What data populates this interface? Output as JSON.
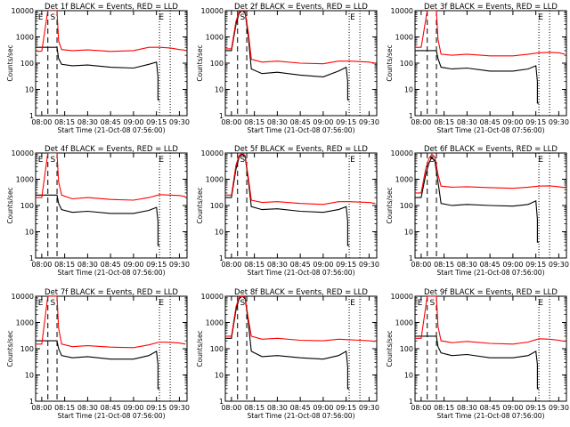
{
  "colors": {
    "events": "#000000",
    "lld": "#ff0000",
    "background": "#ffffff",
    "axes": "#000000"
  },
  "shared": {
    "xlabel": "Start Time (21-Oct-08 07:56:00)",
    "ylabel": "Counts/sec",
    "x_tick_labels": [
      "08:00",
      "08:15",
      "08:30",
      "08:45",
      "09:00",
      "09:15",
      "09:30"
    ],
    "y_tick_labels": [
      "1",
      "10",
      "100",
      "1000",
      "10000"
    ]
  },
  "chart_data": [
    {
      "type": "line",
      "title": "Det 1f BLACK = Events, RED = LLD",
      "xlabel": "Start Time (21-Oct-08 07:56:00)",
      "ylabel": "Counts/sec",
      "yscale": "log",
      "ylim": [
        1,
        10000
      ],
      "xlim": [
        "07:56",
        "09:35"
      ],
      "markers": [
        {
          "label": "E",
          "x": "07:57"
        },
        {
          "label": "S",
          "x": "08:05"
        },
        {
          "label": "E",
          "x": "09:16"
        }
      ],
      "dashed_lines": [
        "08:04",
        "08:10"
      ],
      "dotted_lines": [
        "09:17",
        "09:24"
      ],
      "series": [
        {
          "name": "Events",
          "x": [
            "07:56",
            "07:58",
            "08:00",
            "08:04",
            "08:05",
            "08:10",
            "08:11",
            "08:13",
            "08:20",
            "08:30",
            "08:45",
            "09:00",
            "09:10",
            "09:15",
            "09:16",
            "09:16",
            "09:17"
          ],
          "values": [
            400,
            400,
            400,
            400,
            400,
            400,
            150,
            90,
            80,
            85,
            70,
            65,
            90,
            110,
            30,
            4,
            4
          ]
        },
        {
          "name": "LLD",
          "x": [
            "07:56",
            "07:58",
            "08:00",
            "08:04",
            "08:05",
            "08:10",
            "08:11",
            "08:13",
            "08:20",
            "08:30",
            "08:45",
            "09:00",
            "09:10",
            "09:17",
            "09:24",
            "09:30",
            "09:34"
          ],
          "values": [
            300,
            280,
            290,
            10000,
            10000,
            10000,
            700,
            330,
            300,
            320,
            280,
            300,
            400,
            400,
            380,
            330,
            310
          ]
        }
      ]
    },
    {
      "type": "line",
      "title": "Det 2f BLACK = Events, RED = LLD",
      "xlabel": "Start Time (21-Oct-08 07:56:00)",
      "ylabel": "Counts/sec",
      "yscale": "log",
      "ylim": [
        1,
        10000
      ],
      "xlim": [
        "07:56",
        "09:35"
      ],
      "markers": [
        {
          "label": "S",
          "x": "08:05"
        },
        {
          "label": "E",
          "x": "09:17"
        }
      ],
      "dashed_lines": [
        "08:04",
        "08:10"
      ],
      "dotted_lines": [
        "09:17",
        "09:24"
      ],
      "series": [
        {
          "name": "Events",
          "x": [
            "07:56",
            "08:00",
            "08:03",
            "08:05",
            "08:07",
            "08:09",
            "08:11",
            "08:13",
            "08:20",
            "08:30",
            "08:45",
            "09:00",
            "09:10",
            "09:15",
            "09:16",
            "09:16",
            "09:17"
          ],
          "values": [
            300,
            300,
            3000,
            8000,
            10000,
            8000,
            1000,
            60,
            40,
            45,
            35,
            30,
            50,
            70,
            20,
            4,
            4
          ]
        },
        {
          "name": "LLD",
          "x": [
            "07:56",
            "08:00",
            "08:03",
            "08:05",
            "08:07",
            "08:09",
            "08:11",
            "08:13",
            "08:20",
            "08:30",
            "08:45",
            "09:00",
            "09:10",
            "09:17",
            "09:24",
            "09:30",
            "09:34"
          ],
          "values": [
            350,
            350,
            4000,
            9000,
            10000,
            9000,
            1500,
            140,
            110,
            120,
            100,
            95,
            120,
            120,
            115,
            110,
            100
          ]
        }
      ]
    },
    {
      "type": "line",
      "title": "Det 3f BLACK = Events, RED = LLD",
      "xlabel": "Start Time (21-Oct-08 07:56:00)",
      "ylabel": "Counts/sec",
      "yscale": "log",
      "ylim": [
        1,
        10000
      ],
      "xlim": [
        "07:56",
        "09:35"
      ],
      "markers": [
        {
          "label": "E",
          "x": "09:16"
        }
      ],
      "dashed_lines": [
        "08:04",
        "08:10"
      ],
      "dotted_lines": [
        "09:17",
        "09:24"
      ],
      "series": [
        {
          "name": "Events",
          "x": [
            "07:56",
            "08:00",
            "08:04",
            "08:05",
            "08:10",
            "08:11",
            "08:13",
            "08:20",
            "08:30",
            "08:45",
            "09:00",
            "09:10",
            "09:15",
            "09:16",
            "09:16",
            "09:17"
          ],
          "values": [
            300,
            300,
            300,
            300,
            300,
            150,
            70,
            60,
            65,
            50,
            50,
            60,
            80,
            20,
            3,
            3
          ]
        },
        {
          "name": "LLD",
          "x": [
            "07:56",
            "08:00",
            "08:04",
            "08:05",
            "08:10",
            "08:11",
            "08:13",
            "08:20",
            "08:30",
            "08:45",
            "09:00",
            "09:10",
            "09:17",
            "09:24",
            "09:30",
            "09:34"
          ],
          "values": [
            400,
            400,
            10000,
            10000,
            10000,
            800,
            220,
            200,
            220,
            190,
            190,
            220,
            250,
            260,
            250,
            220
          ]
        }
      ]
    },
    {
      "type": "line",
      "title": "Det 4f BLACK = Events, RED = LLD",
      "xlabel": "Start Time (21-Oct-08 07:56:00)",
      "ylabel": "Counts/sec",
      "yscale": "log",
      "ylim": [
        1,
        10000
      ],
      "xlim": [
        "07:56",
        "09:35"
      ],
      "markers": [
        {
          "label": "E",
          "x": "07:57"
        },
        {
          "label": "S",
          "x": "08:05"
        },
        {
          "label": "E",
          "x": "09:16"
        }
      ],
      "dashed_lines": [
        "08:04",
        "08:10"
      ],
      "dotted_lines": [
        "09:17",
        "09:24"
      ],
      "series": [
        {
          "name": "Events",
          "x": [
            "07:56",
            "08:00",
            "08:04",
            "08:05",
            "08:10",
            "08:11",
            "08:13",
            "08:20",
            "08:30",
            "08:45",
            "09:00",
            "09:10",
            "09:15",
            "09:16",
            "09:16",
            "09:17"
          ],
          "values": [
            250,
            250,
            250,
            250,
            250,
            120,
            70,
            55,
            60,
            50,
            50,
            65,
            85,
            25,
            3,
            3
          ]
        },
        {
          "name": "LLD",
          "x": [
            "07:56",
            "08:00",
            "08:04",
            "08:05",
            "08:10",
            "08:11",
            "08:13",
            "08:20",
            "08:30",
            "08:45",
            "09:00",
            "09:10",
            "09:17",
            "09:24",
            "09:30",
            "09:34"
          ],
          "values": [
            200,
            200,
            10000,
            10000,
            10000,
            800,
            250,
            180,
            200,
            170,
            160,
            200,
            260,
            250,
            240,
            220
          ]
        }
      ]
    },
    {
      "type": "line",
      "title": "Det 5f BLACK = Events, RED = LLD",
      "xlabel": "Start Time (21-Oct-08 07:56:00)",
      "ylabel": "Counts/sec",
      "yscale": "log",
      "ylim": [
        1,
        10000
      ],
      "xlim": [
        "07:56",
        "09:35"
      ],
      "markers": [
        {
          "label": "S",
          "x": "08:05"
        },
        {
          "label": "E",
          "x": "09:17"
        }
      ],
      "dashed_lines": [
        "08:04",
        "08:10"
      ],
      "dotted_lines": [
        "09:17",
        "09:24"
      ],
      "series": [
        {
          "name": "Events",
          "x": [
            "07:56",
            "08:00",
            "08:03",
            "08:05",
            "08:07",
            "08:09",
            "08:11",
            "08:13",
            "08:20",
            "08:30",
            "08:45",
            "09:00",
            "09:10",
            "09:15",
            "09:16",
            "09:16",
            "09:17"
          ],
          "values": [
            200,
            200,
            2500,
            7000,
            9000,
            7000,
            900,
            90,
            70,
            75,
            60,
            55,
            70,
            90,
            25,
            3,
            3
          ]
        },
        {
          "name": "LLD",
          "x": [
            "07:56",
            "08:00",
            "08:03",
            "08:05",
            "08:07",
            "08:09",
            "08:11",
            "08:13",
            "08:20",
            "08:30",
            "08:45",
            "09:00",
            "09:10",
            "09:17",
            "09:24",
            "09:30",
            "09:34"
          ],
          "values": [
            250,
            250,
            3500,
            8000,
            10000,
            8000,
            1200,
            160,
            130,
            140,
            120,
            110,
            140,
            140,
            135,
            130,
            120
          ]
        }
      ]
    },
    {
      "type": "line",
      "title": "Det 6f BLACK = Events, RED = LLD",
      "xlabel": "Start Time (21-Oct-08 07:56:00)",
      "ylabel": "Counts/sec",
      "yscale": "log",
      "ylim": [
        1,
        10000
      ],
      "xlim": [
        "07:56",
        "09:35"
      ],
      "markers": [
        {
          "label": "S",
          "x": "08:05"
        },
        {
          "label": "E",
          "x": "09:16"
        }
      ],
      "dashed_lines": [
        "08:04",
        "08:10"
      ],
      "dotted_lines": [
        "09:17",
        "09:24"
      ],
      "series": [
        {
          "name": "Events",
          "x": [
            "07:56",
            "08:00",
            "08:03",
            "08:05",
            "08:07",
            "08:09",
            "08:11",
            "08:13",
            "08:20",
            "08:30",
            "08:45",
            "09:00",
            "09:10",
            "09:15",
            "09:16",
            "09:16",
            "09:17"
          ],
          "values": [
            200,
            200,
            1500,
            4000,
            7000,
            5000,
            800,
            120,
            100,
            110,
            100,
            95,
            110,
            150,
            30,
            4,
            4
          ]
        },
        {
          "name": "LLD",
          "x": [
            "07:56",
            "08:00",
            "08:03",
            "08:05",
            "08:07",
            "08:09",
            "08:11",
            "08:13",
            "08:20",
            "08:30",
            "08:45",
            "09:00",
            "09:10",
            "09:17",
            "09:24",
            "09:30",
            "09:34"
          ],
          "values": [
            300,
            300,
            2500,
            6000,
            9000,
            7000,
            1500,
            550,
            500,
            520,
            480,
            450,
            500,
            550,
            560,
            520,
            480
          ]
        }
      ]
    },
    {
      "type": "line",
      "title": "Det 7f BLACK = Events, RED = LLD",
      "xlabel": "Start Time (21-Oct-08 07:56:00)",
      "ylabel": "Counts/sec",
      "yscale": "log",
      "ylim": [
        1,
        10000
      ],
      "xlim": [
        "07:56",
        "09:35"
      ],
      "markers": [
        {
          "label": "E",
          "x": "07:57"
        },
        {
          "label": "S",
          "x": "08:05"
        },
        {
          "label": "E",
          "x": "09:16"
        }
      ],
      "dashed_lines": [
        "08:04",
        "08:10"
      ],
      "dotted_lines": [
        "09:17",
        "09:24"
      ],
      "series": [
        {
          "name": "Events",
          "x": [
            "07:56",
            "08:00",
            "08:04",
            "08:05",
            "08:10",
            "08:11",
            "08:13",
            "08:20",
            "08:30",
            "08:45",
            "09:00",
            "09:10",
            "09:15",
            "09:16",
            "09:16",
            "09:17"
          ],
          "values": [
            200,
            200,
            200,
            200,
            200,
            100,
            55,
            45,
            50,
            40,
            40,
            55,
            80,
            25,
            3,
            3
          ]
        },
        {
          "name": "LLD",
          "x": [
            "07:56",
            "08:00",
            "08:04",
            "08:05",
            "08:10",
            "08:11",
            "08:13",
            "08:20",
            "08:30",
            "08:45",
            "09:00",
            "09:10",
            "09:17",
            "09:24",
            "09:30",
            "09:34"
          ],
          "values": [
            150,
            150,
            10000,
            10000,
            10000,
            600,
            150,
            120,
            130,
            115,
            110,
            140,
            180,
            175,
            165,
            150
          ]
        }
      ]
    },
    {
      "type": "line",
      "title": "Det 8f BLACK = Events, RED = LLD",
      "xlabel": "Start Time (21-Oct-08 07:56:00)",
      "ylabel": "Counts/sec",
      "yscale": "log",
      "ylim": [
        1,
        10000
      ],
      "xlim": [
        "07:56",
        "09:35"
      ],
      "markers": [
        {
          "label": "S",
          "x": "08:05"
        },
        {
          "label": "E",
          "x": "09:17"
        }
      ],
      "dashed_lines": [
        "08:04",
        "08:10"
      ],
      "dotted_lines": [
        "09:17",
        "09:24"
      ],
      "series": [
        {
          "name": "Events",
          "x": [
            "07:56",
            "08:00",
            "08:03",
            "08:05",
            "08:07",
            "08:09",
            "08:11",
            "08:13",
            "08:20",
            "08:30",
            "08:45",
            "09:00",
            "09:10",
            "09:15",
            "09:16",
            "09:16",
            "09:17"
          ],
          "values": [
            250,
            250,
            3000,
            8000,
            10000,
            8000,
            1000,
            80,
            50,
            55,
            45,
            40,
            55,
            80,
            20,
            3,
            3
          ]
        },
        {
          "name": "LLD",
          "x": [
            "07:56",
            "08:00",
            "08:03",
            "08:05",
            "08:07",
            "08:09",
            "08:11",
            "08:13",
            "08:20",
            "08:30",
            "08:45",
            "09:00",
            "09:10",
            "09:17",
            "09:24",
            "09:30",
            "09:34"
          ],
          "values": [
            300,
            300,
            4000,
            9000,
            10000,
            9000,
            1400,
            300,
            230,
            250,
            210,
            200,
            230,
            220,
            210,
            200,
            190
          ]
        }
      ]
    },
    {
      "type": "line",
      "title": "Det 9f BLACK = Events, RED = LLD",
      "xlabel": "Start Time (21-Oct-08 07:56:00)",
      "ylabel": "Counts/sec",
      "yscale": "log",
      "ylim": [
        1,
        10000
      ],
      "xlim": [
        "07:56",
        "09:35"
      ],
      "markers": [
        {
          "label": "E",
          "x": "07:57"
        },
        {
          "label": "S",
          "x": "08:05"
        },
        {
          "label": "E",
          "x": "09:16"
        }
      ],
      "dashed_lines": [
        "08:04",
        "08:10"
      ],
      "dotted_lines": [
        "09:17",
        "09:24"
      ],
      "series": [
        {
          "name": "Events",
          "x": [
            "07:56",
            "08:00",
            "08:04",
            "08:05",
            "08:10",
            "08:11",
            "08:13",
            "08:20",
            "08:30",
            "08:45",
            "09:00",
            "09:10",
            "09:15",
            "09:16",
            "09:16",
            "09:17"
          ],
          "values": [
            300,
            300,
            300,
            300,
            300,
            120,
            70,
            55,
            60,
            45,
            45,
            55,
            80,
            25,
            3,
            3
          ]
        },
        {
          "name": "LLD",
          "x": [
            "07:56",
            "08:00",
            "08:04",
            "08:05",
            "08:10",
            "08:11",
            "08:13",
            "08:20",
            "08:30",
            "08:45",
            "09:00",
            "09:10",
            "09:17",
            "09:24",
            "09:30",
            "09:34"
          ],
          "values": [
            250,
            250,
            10000,
            10000,
            10000,
            700,
            200,
            170,
            190,
            160,
            150,
            180,
            240,
            230,
            210,
            190
          ]
        }
      ]
    }
  ]
}
